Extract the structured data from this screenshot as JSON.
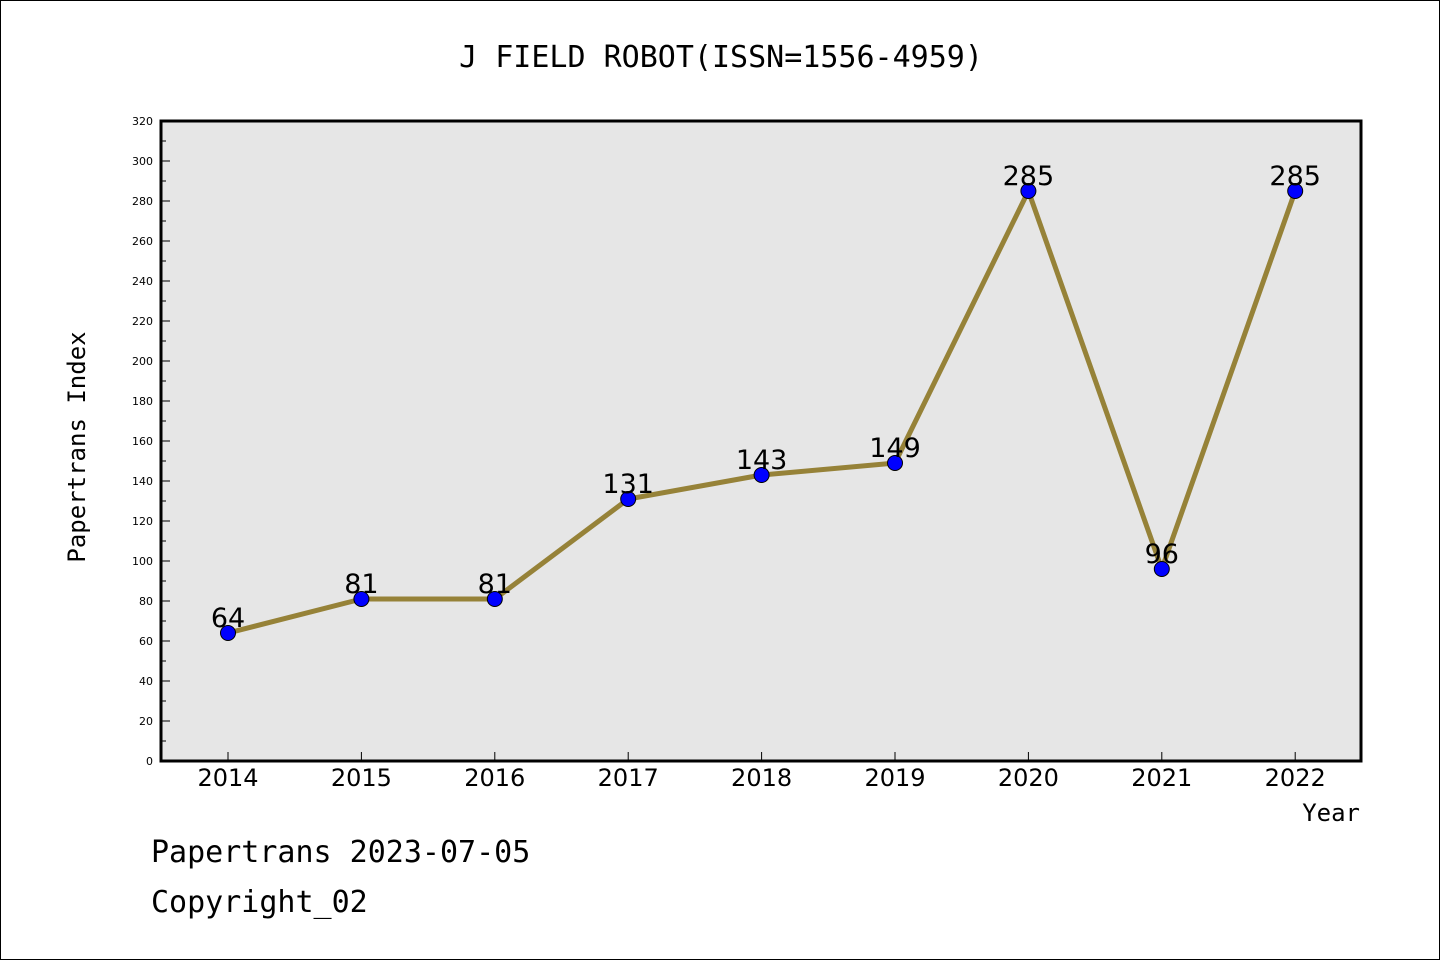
{
  "chart_data": {
    "type": "line",
    "title": "J FIELD ROBOT(ISSN=1556-4959)",
    "xlabel": "Year",
    "ylabel": "Papertrans Index",
    "categories": [
      "2014",
      "2015",
      "2016",
      "2017",
      "2018",
      "2019",
      "2020",
      "2021",
      "2022"
    ],
    "series": [
      {
        "values": [
          64,
          81,
          81,
          131,
          143,
          149,
          285,
          96,
          285
        ]
      }
    ],
    "data_labels": [
      "64",
      "81",
      "81",
      "131",
      "143",
      "149",
      "285",
      "96",
      "285"
    ],
    "ylim": [
      0,
      320
    ],
    "y_ticks": [
      "0",
      "20",
      "40",
      "60",
      "80",
      "100",
      "120",
      "140",
      "160",
      "180",
      "200",
      "220",
      "240",
      "260",
      "280",
      "300",
      "320"
    ],
    "grid": false,
    "legend": "none",
    "colors": {
      "line": "#968238",
      "marker": "#0000ff",
      "plot_background": "#e6e6e6"
    }
  },
  "footer": {
    "date_line": "Papertrans 2023-07-05",
    "copyright_line": "Copyright_02"
  }
}
